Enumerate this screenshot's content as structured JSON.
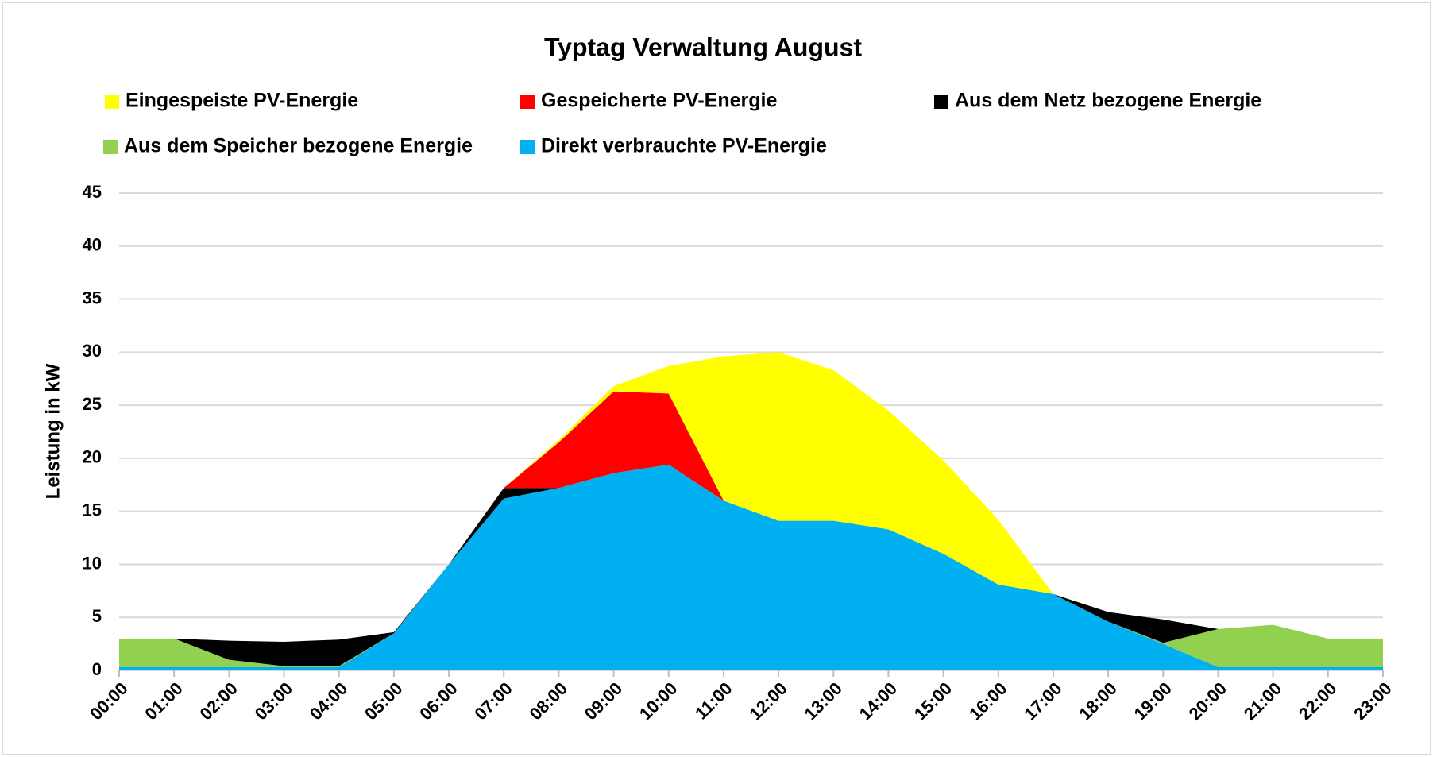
{
  "chart_data": {
    "type": "stacked_area",
    "title": "Typtag Verwaltung August",
    "y_label": "Leistung in kW",
    "categories": [
      "00:00",
      "01:00",
      "02:00",
      "03:00",
      "04:00",
      "05:00",
      "06:00",
      "07:00",
      "08:00",
      "09:00",
      "10:00",
      "11:00",
      "12:00",
      "13:00",
      "14:00",
      "15:00",
      "16:00",
      "17:00",
      "18:00",
      "19:00",
      "20:00",
      "21:00",
      "22:00",
      "23:00"
    ],
    "series": [
      {
        "name": "Eingespeiste PV-Energie",
        "color": "#ffff00",
        "values": [
          0,
          0,
          0,
          0,
          0,
          0,
          0,
          0,
          0.2,
          0.5,
          2.6,
          13.6,
          15.9,
          14.2,
          11.2,
          8.8,
          6.1,
          0,
          0,
          0,
          0,
          0,
          0,
          0
        ]
      },
      {
        "name": "Gespeicherte PV-Energie",
        "color": "#ff0000",
        "values": [
          0,
          0,
          0,
          0,
          0,
          0,
          0,
          0,
          4.3,
          7.7,
          6.7,
          0,
          0,
          0,
          0,
          0,
          0,
          0,
          0,
          0,
          0,
          0,
          0,
          0
        ]
      },
      {
        "name": "Aus dem Netz bezogene Energie",
        "color": "#000000",
        "values": [
          0,
          0,
          1.8,
          2.3,
          2.5,
          0.1,
          0,
          1.0,
          0,
          0,
          0,
          0,
          0,
          0,
          0,
          0,
          0,
          0,
          0.9,
          2.2,
          0,
          0,
          0,
          0
        ]
      },
      {
        "name": "Aus dem Speicher bezogene Energie",
        "color": "#92d050",
        "values": [
          2.7,
          2.7,
          0.7,
          0.1,
          0.1,
          0,
          0,
          0,
          0,
          0,
          0,
          0,
          0,
          0,
          0,
          0,
          0,
          0,
          0,
          0.1,
          3.6,
          4.0,
          2.7,
          2.7
        ]
      },
      {
        "name": "Direkt verbrauchte PV-Energie",
        "color": "#00b0f0",
        "values": [
          0.3,
          0.3,
          0.3,
          0.3,
          0.3,
          3.5,
          10,
          16.2,
          17.2,
          18.6,
          19.4,
          16,
          14.1,
          14.1,
          13.3,
          11,
          8.1,
          7.2,
          4.6,
          2.5,
          0.3,
          0.3,
          0.3,
          0.3
        ]
      }
    ],
    "ylim": [
      0,
      45
    ],
    "yticks": [
      0,
      5,
      10,
      15,
      20,
      25,
      30,
      35,
      40,
      45
    ],
    "grid": true
  }
}
